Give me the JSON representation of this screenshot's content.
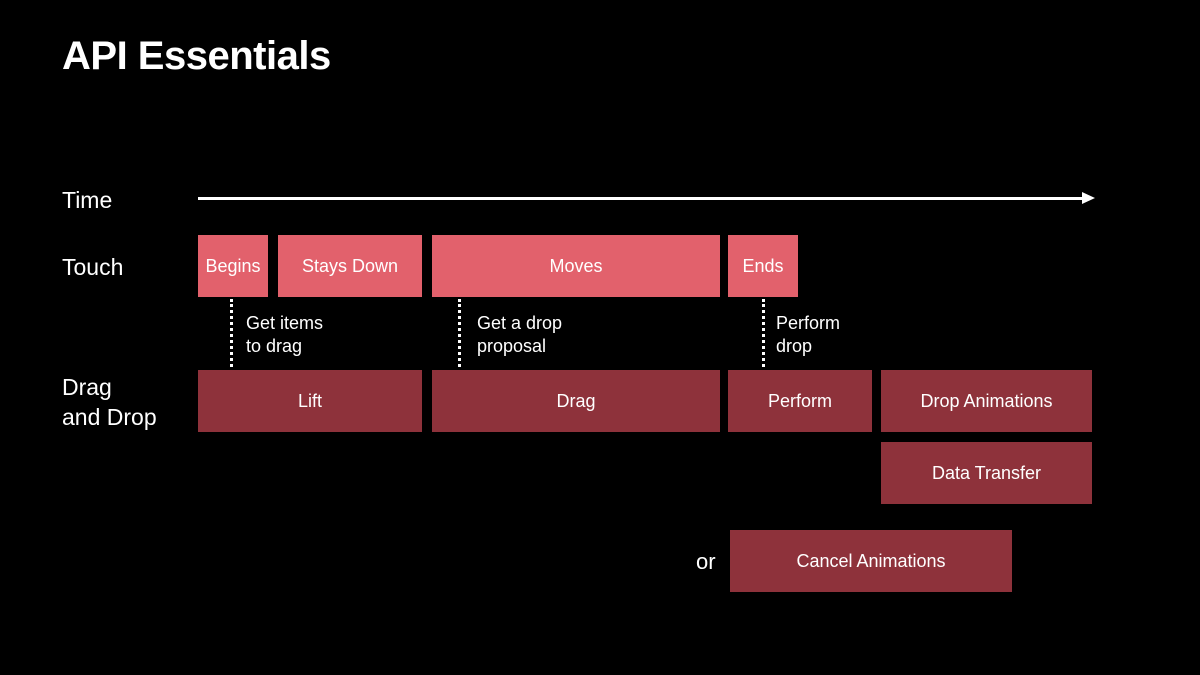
{
  "title": "API Essentials",
  "rows": {
    "time": "Time",
    "touch": "Touch",
    "drag_and_drop": [
      "Drag",
      "and Drop"
    ]
  },
  "touch_phases": [
    "Begins",
    "Stays Down",
    "Moves",
    "Ends"
  ],
  "notes": {
    "get_items": [
      "Get items",
      "to drag"
    ],
    "get_proposal": [
      "Get a drop",
      "proposal"
    ],
    "perform_drop": [
      "Perform",
      "drop"
    ]
  },
  "dnd_phases": {
    "lift": "Lift",
    "drag": "Drag",
    "perform": "Perform",
    "drop_animations": "Drop Animations",
    "data_transfer": "Data Transfer",
    "cancel_animations": "Cancel Animations"
  },
  "or_label": "or",
  "colors": {
    "background": "#000000",
    "touch_box": "#e2616c",
    "phase_box": "#8e323b",
    "text": "#ffffff"
  }
}
